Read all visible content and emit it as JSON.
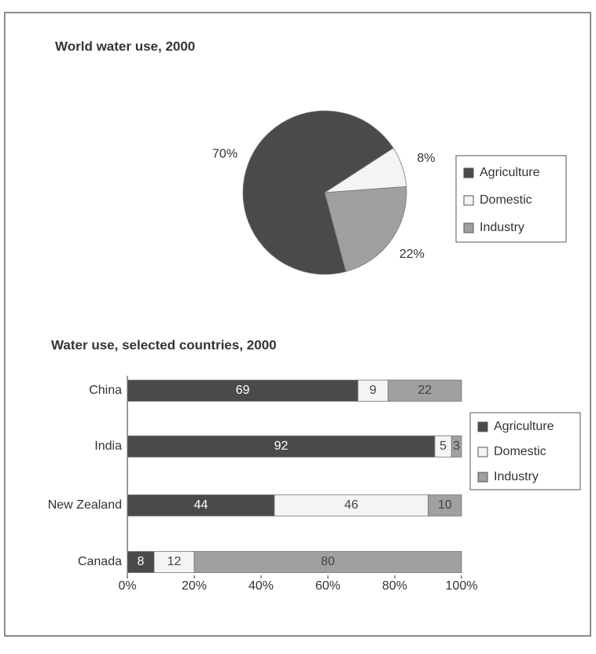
{
  "chart_data": [
    {
      "type": "pie",
      "title": "World water use, 2000",
      "categories": [
        "Agriculture",
        "Domestic",
        "Industry"
      ],
      "values": [
        70,
        8,
        22
      ],
      "value_labels": [
        "70%",
        "8%",
        "22%"
      ],
      "colors": [
        "#4a4a4a",
        "#f4f4f4",
        "#a0a0a0"
      ]
    },
    {
      "type": "stacked_barh",
      "title": "Water use, selected countries, 2000",
      "categories": [
        "China",
        "India",
        "New Zealand",
        "Canada"
      ],
      "series": [
        {
          "name": "Agriculture",
          "color": "#4a4a4a",
          "values": [
            69,
            92,
            44,
            8
          ]
        },
        {
          "name": "Domestic",
          "color": "#f4f4f4",
          "values": [
            9,
            5,
            46,
            12
          ]
        },
        {
          "name": "Industry",
          "color": "#a0a0a0",
          "values": [
            22,
            3,
            10,
            80
          ]
        }
      ],
      "xlim": [
        0,
        100
      ],
      "xticks": [
        {
          "value": 0,
          "label": "0%"
        },
        {
          "value": 20,
          "label": "20%"
        },
        {
          "value": 40,
          "label": "40%"
        },
        {
          "value": 60,
          "label": "60%"
        },
        {
          "value": 80,
          "label": "80%"
        },
        {
          "value": 100,
          "label": "100%"
        }
      ]
    }
  ]
}
